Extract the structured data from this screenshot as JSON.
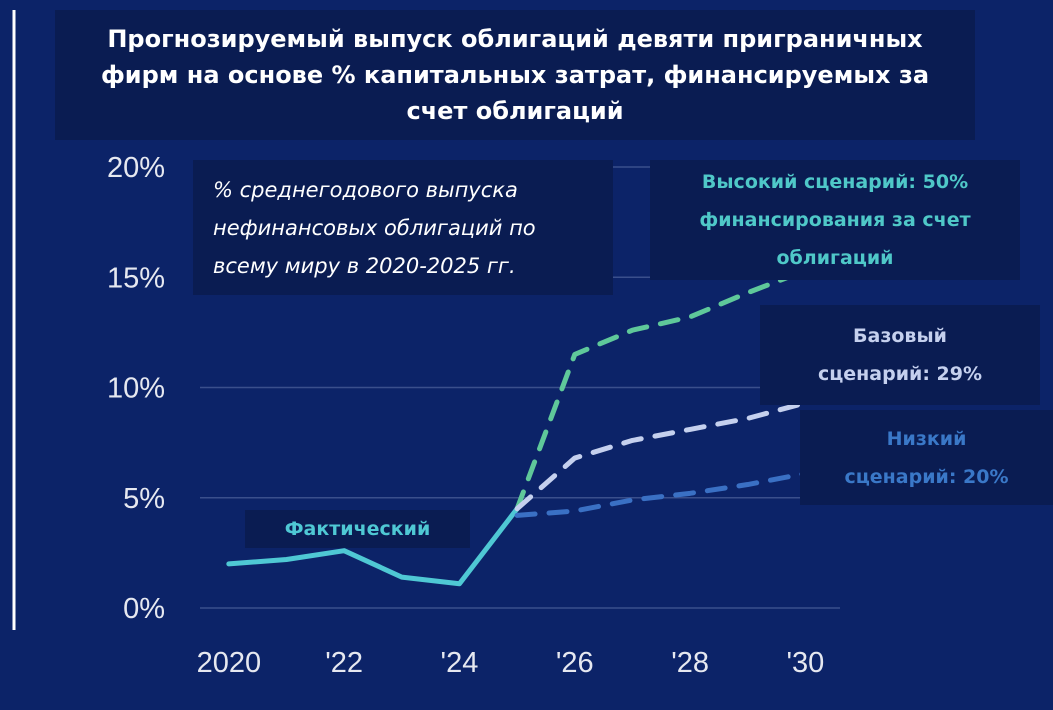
{
  "chart_data": {
    "type": "line",
    "title": "Прогнозируемый выпуск облигаций девяти приграничных фирм на основе % капитальных затрат, финансируемых за счет облигаций",
    "subtitle": "% среднегодового выпуска нефинансовых облигаций по всему миру в 2020-2025 гг.",
    "x": [
      2020,
      2021,
      2022,
      2023,
      2024,
      2025,
      2026,
      2027,
      2028,
      2029,
      2030
    ],
    "series": [
      {
        "name": "Фактический",
        "color": "#4fc8d4",
        "values": [
          2.0,
          2.2,
          2.6,
          1.4,
          1.1,
          4.5,
          null,
          null,
          null,
          null,
          null
        ]
      },
      {
        "name": "Высокий сценарий: 50% финансирования за счет облигаций",
        "color": "#5fc89a",
        "values": [
          null,
          null,
          null,
          null,
          null,
          4.5,
          11.5,
          12.6,
          13.2,
          14.3,
          15.3
        ]
      },
      {
        "name": "Базовый сценарий: 29%",
        "color": "#c5d0ee",
        "values": [
          null,
          null,
          null,
          null,
          null,
          4.5,
          6.8,
          7.6,
          8.1,
          8.6,
          9.3
        ]
      },
      {
        "name": "Низкий сценарий: 20%",
        "color": "#3a70c4",
        "values": [
          null,
          null,
          null,
          null,
          null,
          4.2,
          4.4,
          4.9,
          5.2,
          5.6,
          6.1
        ]
      }
    ],
    "xlim": [
      2019.5,
      2030.6
    ],
    "xticks": [
      {
        "value": 2020,
        "label": "2020"
      },
      {
        "value": 2022,
        "label": "'22"
      },
      {
        "value": 2024,
        "label": "'24"
      },
      {
        "value": 2026,
        "label": "'26"
      },
      {
        "value": 2028,
        "label": "'28"
      },
      {
        "value": 2030,
        "label": "'30"
      }
    ],
    "ylim": [
      0,
      20
    ],
    "yticks": [
      {
        "value": 0,
        "label": "0%"
      },
      {
        "value": 5,
        "label": "5%"
      },
      {
        "value": 10,
        "label": "10%"
      },
      {
        "value": 15,
        "label": "15%"
      },
      {
        "value": 20,
        "label": "20%"
      }
    ],
    "grid": true
  }
}
